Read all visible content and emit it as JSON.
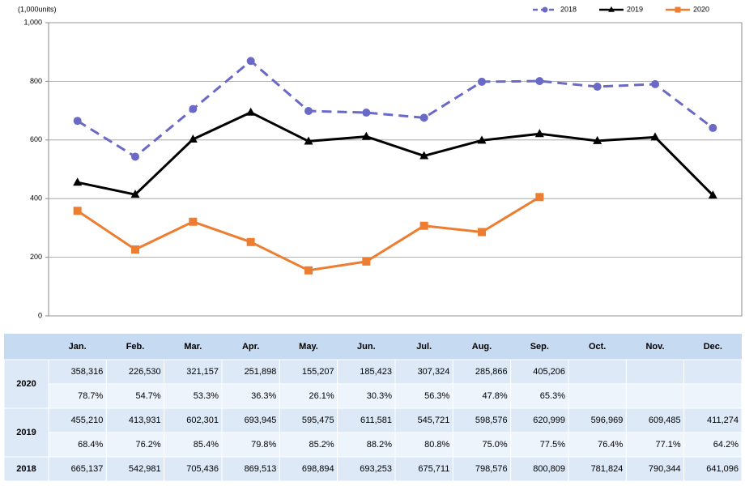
{
  "chart_data": {
    "type": "line",
    "y_label": "(1,000units)",
    "categories": [
      "Jan.",
      "Feb.",
      "Mar.",
      "Apr.",
      "May.",
      "Jun.",
      "Jul.",
      "Aug.",
      "Sep.",
      "Oct.",
      "Nov.",
      "Dec."
    ],
    "ylim": [
      0,
      1000
    ],
    "yticks": [
      0,
      200,
      400,
      600,
      800,
      {
        "value": 1000,
        "label": "1,000"
      }
    ],
    "grid": true,
    "legend": "top-right",
    "series": [
      {
        "name": "2018",
        "color": "#6a6ac6",
        "dash": true,
        "marker": "circle",
        "values": [
          665.137,
          542.981,
          705.436,
          869.513,
          698.894,
          693.253,
          675.711,
          798.576,
          800.809,
          781.824,
          790.344,
          641.096
        ],
        "value_labels": [
          "665,137",
          "542,981",
          "705,436",
          "869,513",
          "698,894",
          "693,253",
          "675,711",
          "798,576",
          "800,809",
          "781,824",
          "790,344",
          "641,096"
        ]
      },
      {
        "name": "2019",
        "color": "#000000",
        "dash": false,
        "marker": "triangle",
        "values": [
          455.21,
          413.931,
          602.301,
          693.945,
          595.475,
          611.581,
          545.721,
          598.576,
          620.999,
          596.969,
          609.485,
          411.274
        ],
        "value_labels": [
          "455,210",
          "413,931",
          "602,301",
          "693,945",
          "595,475",
          "611,581",
          "545,721",
          "598,576",
          "620,999",
          "596,969",
          "609,485",
          "411,274"
        ],
        "ratios": [
          "68.4%",
          "76.2%",
          "85.4%",
          "79.8%",
          "85.2%",
          "88.2%",
          "80.8%",
          "75.0%",
          "77.5%",
          "76.4%",
          "77.1%",
          "64.2%"
        ]
      },
      {
        "name": "2020",
        "color": "#ed7d31",
        "dash": false,
        "marker": "square",
        "values": [
          358.316,
          226.53,
          321.157,
          251.898,
          155.207,
          185.423,
          307.324,
          285.866,
          405.206,
          null,
          null,
          null
        ],
        "value_labels": [
          "358,316",
          "226,530",
          "321,157",
          "251,898",
          "155,207",
          "185,423",
          "307,324",
          "285,866",
          "405,206",
          null,
          null,
          null
        ],
        "ratios": [
          "78.7%",
          "54.7%",
          "53.3%",
          "36.3%",
          "26.1%",
          "30.3%",
          "56.3%",
          "47.8%",
          "65.3%",
          null,
          null,
          null
        ]
      }
    ]
  }
}
